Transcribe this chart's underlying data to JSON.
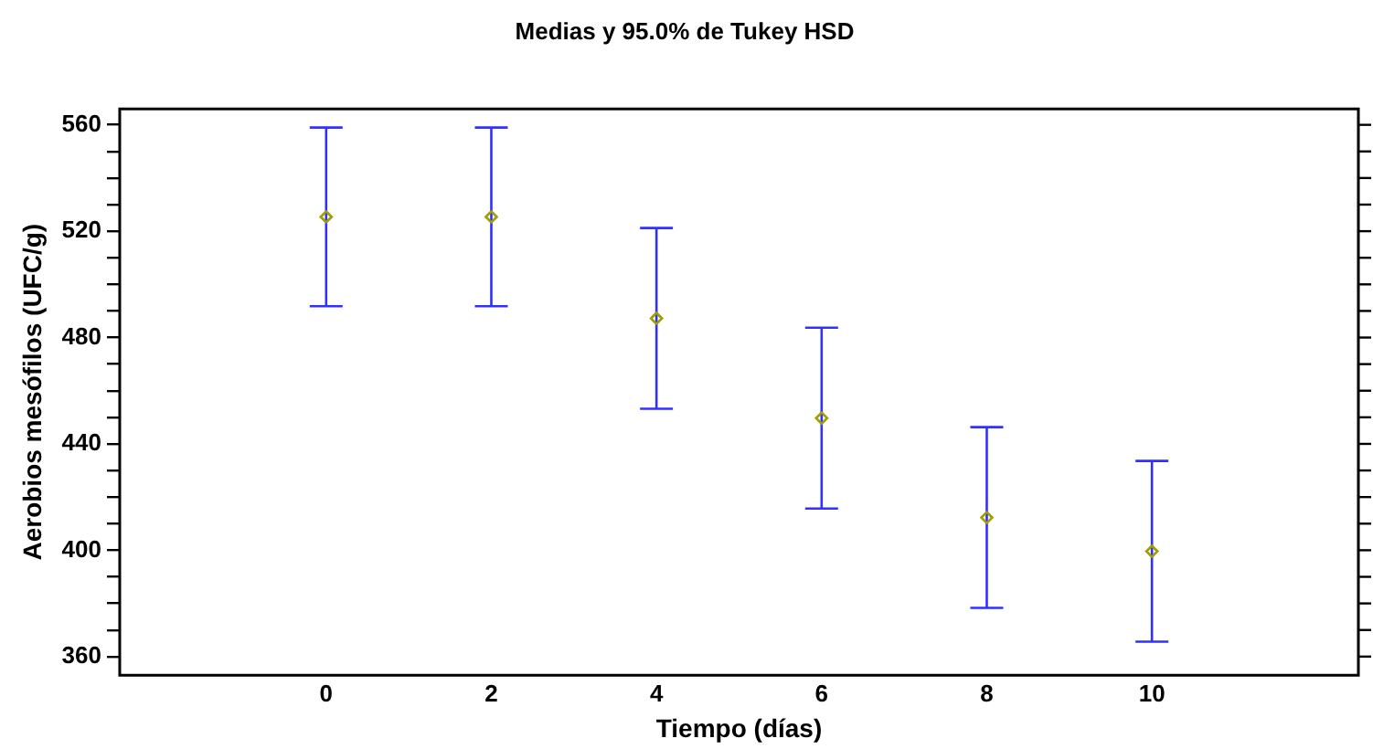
{
  "chart_data": {
    "type": "scatter",
    "title": "Medias y 95.0% de Tukey HSD",
    "xlabel": "Tiempo (días)",
    "ylabel": "Aerobios mesófilos (UFC/g)",
    "x": [
      0,
      2,
      4,
      6,
      8,
      10
    ],
    "series": [
      {
        "color": "#a0a000",
        "values": [
          525.4,
          525.4,
          487.2,
          449.7,
          412.3,
          399.6
        ],
        "errors": [
          33.6,
          33.6,
          34,
          34,
          34,
          34
        ]
      }
    ],
    "marker": "diamond",
    "xlim": [
      -2.5,
      12.5
    ],
    "xticks": [
      0,
      2,
      4,
      6,
      8,
      10
    ],
    "ylim": [
      353,
      566
    ],
    "yticks": [
      360,
      {
        "value": 370,
        "label": null
      },
      {
        "value": 380,
        "label": null
      },
      {
        "value": 390,
        "label": null
      },
      400,
      {
        "value": 410,
        "label": null
      },
      {
        "value": 420,
        "label": null
      },
      {
        "value": 430,
        "label": null
      },
      440,
      {
        "value": 450,
        "label": null
      },
      {
        "value": 460,
        "label": null
      },
      {
        "value": 470,
        "label": null
      },
      480,
      {
        "value": 490,
        "label": null
      },
      {
        "value": 500,
        "label": null
      },
      {
        "value": 510,
        "label": null
      },
      520,
      {
        "value": 530,
        "label": null
      },
      {
        "value": 540,
        "label": null
      },
      {
        "value": 550,
        "label": null
      },
      560
    ]
  }
}
